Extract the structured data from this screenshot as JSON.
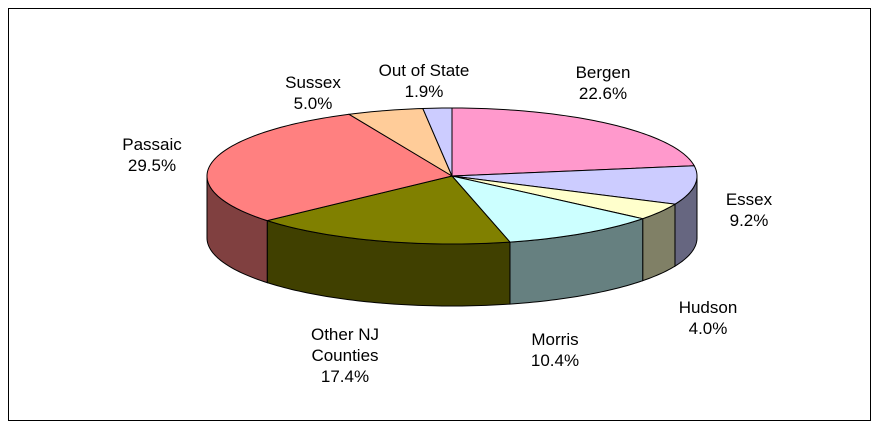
{
  "chart_data": {
    "type": "pie3d",
    "categories": [
      "Bergen",
      "Essex",
      "Hudson",
      "Morris",
      "Other NJ Counties",
      "Passaic",
      "Sussex",
      "Out of State"
    ],
    "values": [
      22.6,
      9.2,
      4.0,
      10.4,
      17.4,
      29.5,
      5.0,
      1.9
    ],
    "value_labels": [
      "22.6%",
      "9.2%",
      "4.0%",
      "10.4%",
      "17.4%",
      "29.5%",
      "5.0%",
      "1.9%"
    ],
    "colors": [
      "#ff99cc",
      "#ccccff",
      "#ffffcc",
      "#ccffff",
      "#808000",
      "#ff8080",
      "#ffcc99",
      "#ccccff"
    ]
  }
}
